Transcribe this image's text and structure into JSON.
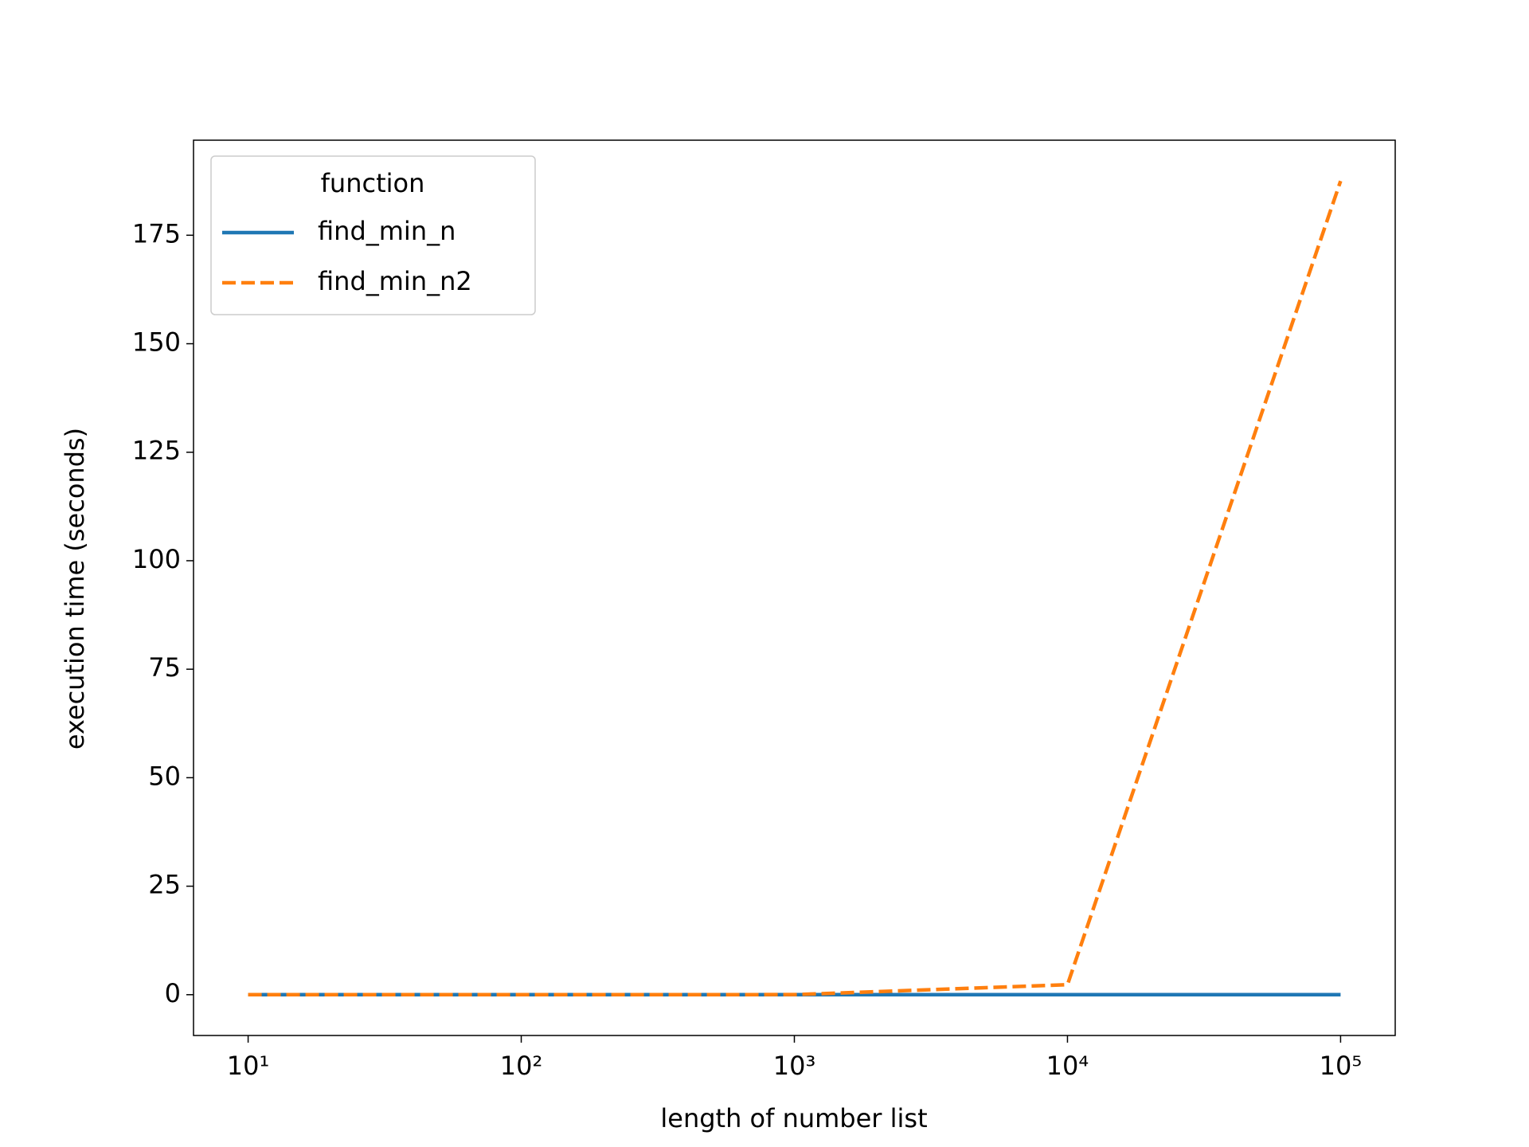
{
  "chart_data": {
    "type": "line",
    "xlabel": "length of number list",
    "ylabel": "execution time (seconds)",
    "xscale": "log",
    "x": [
      10,
      100,
      1000,
      10000,
      100000
    ],
    "series": [
      {
        "name": "find_min_n",
        "color": "#1f77b4",
        "linestyle": "solid",
        "values": [
          0,
          0,
          0,
          0.001,
          0.01
        ]
      },
      {
        "name": "find_min_n2",
        "color": "#ff7f0e",
        "linestyle": "dashed",
        "values": [
          0,
          0.002,
          0.02,
          2.3,
          187.5
        ]
      }
    ],
    "xlim": [
      6.31,
      158489
    ],
    "ylim": [
      -9.4,
      196.9
    ],
    "xticks": [
      {
        "value": 10,
        "label": "10¹"
      },
      {
        "value": 100,
        "label": "10²"
      },
      {
        "value": 1000,
        "label": "10³"
      },
      {
        "value": 10000,
        "label": "10⁴"
      },
      {
        "value": 100000,
        "label": "10⁵"
      }
    ],
    "yticks": [
      0,
      25,
      50,
      75,
      100,
      125,
      150,
      175
    ],
    "legend_title": "function",
    "legend": "upper left",
    "grid": false
  }
}
